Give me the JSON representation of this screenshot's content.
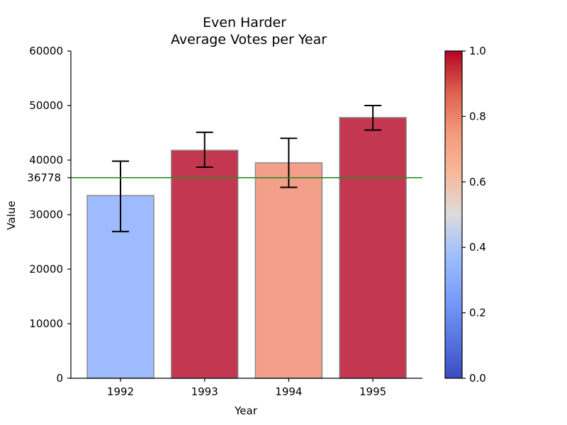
{
  "chart_data": {
    "type": "bar",
    "title_lines": [
      "Even Harder",
      "Average Votes per Year"
    ],
    "xlabel": "Year",
    "ylabel": "Value",
    "categories": [
      "1992",
      "1993",
      "1994",
      "1995"
    ],
    "values": [
      33500,
      41800,
      39500,
      47800
    ],
    "error_low": [
      26900,
      38700,
      35000,
      45500
    ],
    "error_high": [
      39800,
      45100,
      44000,
      50000
    ],
    "bar_colors": [
      "#9ebbff",
      "#c43750",
      "#f39f8a",
      "#c43750"
    ],
    "bar_edge_color": "#8a8a8a",
    "ylim": [
      0,
      60000
    ],
    "yticks": [
      0,
      10000,
      20000,
      30000,
      40000,
      50000,
      60000
    ],
    "reference_line": {
      "value": 36778,
      "label": "36778",
      "color": "#2a8a2a"
    },
    "colorbar": {
      "colormap": "coolwarm",
      "range": [
        0.0,
        1.0
      ],
      "ticks": [
        "0.0",
        "0.2",
        "0.4",
        "0.6",
        "0.8",
        "1.0"
      ],
      "tick_values": [
        0.0,
        0.2,
        0.4,
        0.6,
        0.8,
        1.0
      ]
    },
    "grid": false,
    "spines": "left-bottom"
  }
}
